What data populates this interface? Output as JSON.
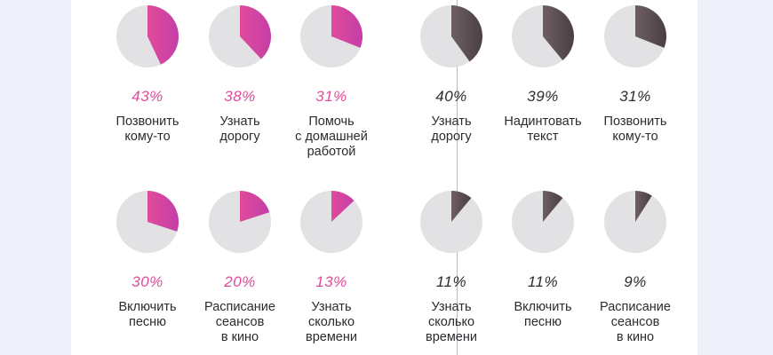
{
  "colors": {
    "pie_background": "#e2e2e4",
    "pink_gradient_start": "#e04b9b",
    "pink_gradient_end": "#c43ea7",
    "dark_gradient_start": "#6d5e63",
    "dark_gradient_end": "#4a3f43",
    "pink_text": "#e04b9b",
    "dark_text": "#2b2b30"
  },
  "chart_data": [
    {
      "type": "pie",
      "panel": "left",
      "color": "pink",
      "rows": [
        [
          {
            "percent_label": "43%",
            "value": 43,
            "label": "Позвонить\nкому-то"
          },
          {
            "percent_label": "38%",
            "value": 38,
            "label": "Узнать\nдорогу"
          },
          {
            "percent_label": "31%",
            "value": 31,
            "label": "Помочь\nс домашней\nработой"
          }
        ],
        [
          {
            "percent_label": "30%",
            "value": 30,
            "label": "Включить\nпесню"
          },
          {
            "percent_label": "20%",
            "value": 20,
            "label": "Расписание\nсеансов\nв кино"
          },
          {
            "percent_label": "13%",
            "value": 13,
            "label": "Узнать\nсколько\nвремени"
          }
        ]
      ]
    },
    {
      "type": "pie",
      "panel": "right",
      "color": "dark",
      "rows": [
        [
          {
            "percent_label": "40%",
            "value": 40,
            "label": "Узнать\nдорогу"
          },
          {
            "percent_label": "39%",
            "value": 39,
            "label": "Надинтовать\nтекст"
          },
          {
            "percent_label": "31%",
            "value": 31,
            "label": "Позвонить\nкому-то"
          }
        ],
        [
          {
            "percent_label": "11%",
            "value": 11,
            "label": "Узнать\nсколько\nвремени"
          },
          {
            "percent_label": "11%",
            "value": 11,
            "label": "Включить\nпесню"
          },
          {
            "percent_label": "9%",
            "value": 9,
            "label": "Расписание\nсеансов\nв кино"
          }
        ]
      ]
    }
  ]
}
